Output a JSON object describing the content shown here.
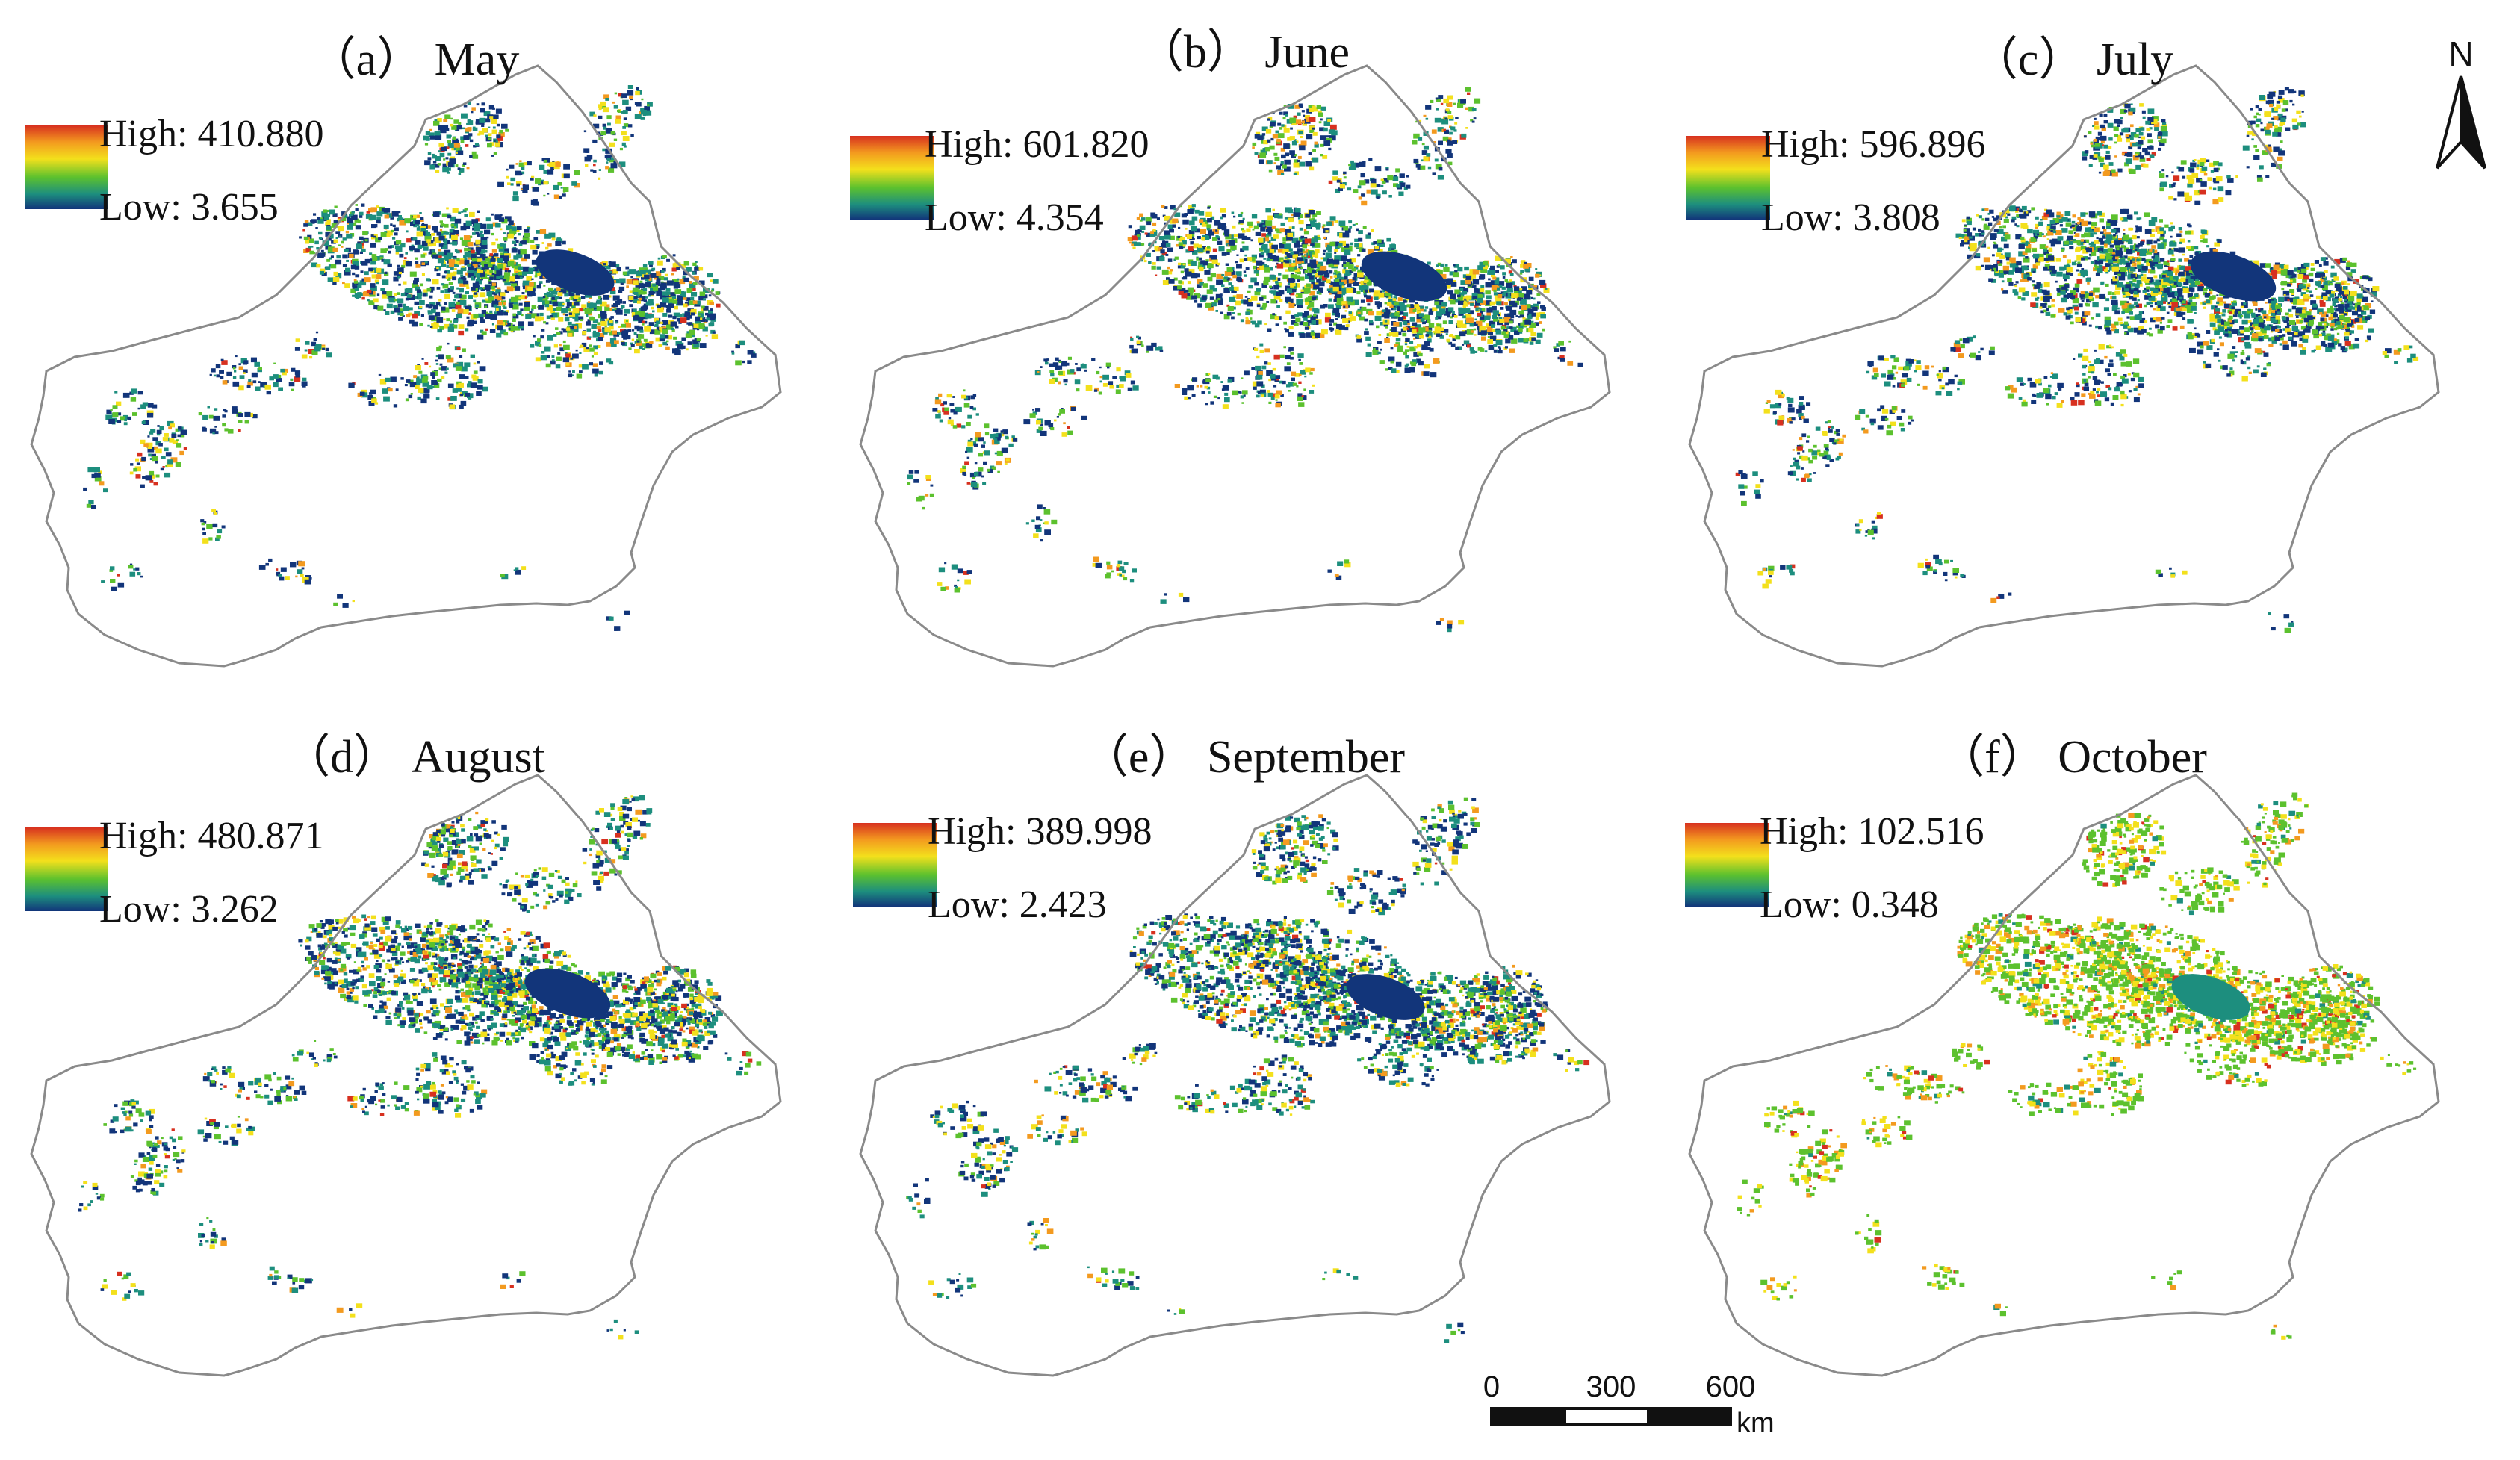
{
  "panels": [
    {
      "title": "（a） May",
      "legend": {
        "high": "High: 410.880",
        "low": "Low: 3.655"
      },
      "level": 0.42
    },
    {
      "title": "（b） June",
      "legend": {
        "high": "High: 601.820",
        "low": "Low: 4.354"
      },
      "level": 0.62
    },
    {
      "title": "（c） July",
      "legend": {
        "high": "High: 596.896",
        "low": "Low: 3.808"
      },
      "level": 0.66
    },
    {
      "title": "（d） August",
      "legend": {
        "high": "High: 480.871",
        "low": "Low: 3.262"
      },
      "level": 0.58
    },
    {
      "title": "（e） September",
      "legend": {
        "high": "High: 389.998",
        "low": "Low: 2.423"
      },
      "level": 0.5
    },
    {
      "title": "（f） October",
      "legend": {
        "high": "High: 102.516",
        "low": "Low: 0.348"
      },
      "level": 0.55
    }
  ],
  "north_arrow": {
    "label": "N"
  },
  "scale_bar": {
    "ticks": [
      "0",
      "300",
      "600"
    ],
    "unit": "km"
  },
  "colors": {
    "ramp": [
      "#d7301f",
      "#f39a1f",
      "#f3e01c",
      "#5cc12e",
      "#1d8e7e",
      "#12357a"
    ],
    "outline": "#8a8a8a"
  }
}
